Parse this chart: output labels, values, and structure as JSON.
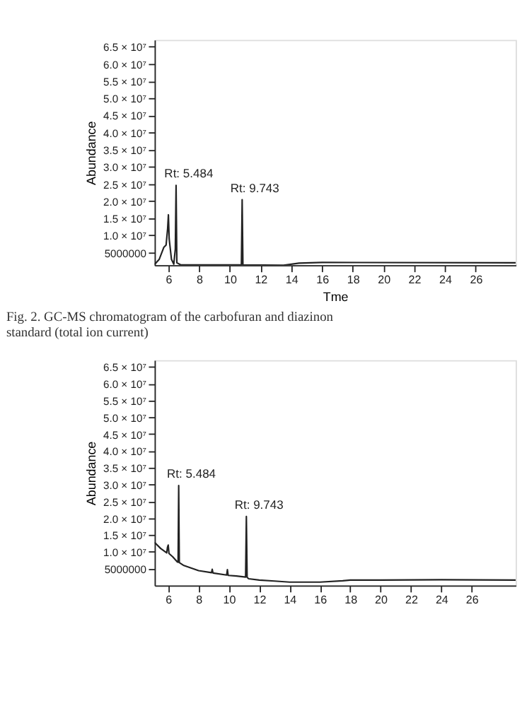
{
  "chart_data": [
    {
      "type": "line",
      "ylabel": "Abundance",
      "xlabel": "Tme",
      "series": [
        {
          "color": "#222222",
          "x": [
            5.1,
            5.4,
            5.7,
            5.85,
            5.95,
            6.0,
            6.05,
            6.2,
            6.35,
            6.45,
            6.5,
            6.55,
            6.8,
            10.75,
            10.8,
            10.85,
            13.5,
            14.5,
            16,
            28.6
          ],
          "values": [
            1500000,
            3000000,
            6500000,
            7200000,
            12000000,
            16000000,
            9000000,
            3000000,
            1600000,
            6000000,
            24600000,
            2000000,
            1400000,
            1400000,
            20400000,
            1400000,
            1300000,
            1900000,
            2100000,
            2000000
          ]
        }
      ],
      "xlim": [
        5.1,
        28.6
      ],
      "xticks": [
        6,
        8,
        10,
        12,
        14,
        16,
        18,
        20,
        22,
        24,
        26
      ],
      "ylim": [
        1300000,
        67000000
      ],
      "yticks": [
        5000000,
        {
          "value": 10000000,
          "label": "1.0 × 10⁷"
        },
        {
          "value": 15000000,
          "label": "1.5 × 10⁷"
        },
        {
          "value": 20000000,
          "label": "2.0 × 10⁷"
        },
        {
          "value": 25000000,
          "label": "2.5 × 10⁷"
        },
        {
          "value": 30000000,
          "label": "3.0 × 10⁷"
        },
        {
          "value": 35000000,
          "label": "3.5 × 10⁷"
        },
        {
          "value": 40000000,
          "label": "4.0 × 10⁷"
        },
        {
          "value": 45000000,
          "label": "4.5 × 10⁷"
        },
        {
          "value": 50000000,
          "label": "5.0 × 10⁷"
        },
        {
          "value": 55000000,
          "label": "5.5 × 10⁷"
        },
        {
          "value": 60000000,
          "label": "6.0 × 10⁷"
        },
        {
          "value": 65000000,
          "label": "6.5 × 10⁷"
        }
      ],
      "annotations": [
        {
          "text": "Rt: 5.484",
          "x": 6.5,
          "y": 24600000
        },
        {
          "text": "Rt: 9.743",
          "x": 10.8,
          "y": 20400000
        },
        "Fig. 2.   GC-MS chromatogram of the carbofuran and diazinon standard (total ion current)"
      ],
      "grid": false,
      "marker": "none",
      "line_style": "solid"
    },
    {
      "type": "line",
      "ylabel": "Abundance",
      "series": [
        {
          "color": "#222222",
          "x": [
            5.1,
            5.5,
            5.9,
            5.95,
            6.0,
            6.05,
            6.3,
            6.6,
            6.65,
            6.69,
            6.73,
            7.0,
            8.0,
            8.85,
            8.9,
            8.95,
            9.85,
            9.9,
            9.95,
            10.5,
            11.1,
            11.15,
            11.2,
            11.25,
            11.3,
            12.0,
            13.0,
            14.0,
            16.0,
            17.5,
            18.0,
            20.0,
            24.0,
            28.9
          ],
          "values": [
            12800000,
            11000000,
            9700000,
            11300000,
            12000000,
            9500000,
            8500000,
            7000000,
            6900000,
            29700000,
            6800000,
            6000000,
            4400000,
            3800000,
            4800000,
            3700000,
            3100000,
            4700000,
            3000000,
            2800000,
            2500000,
            20500000,
            2400000,
            2200000,
            2000000,
            1600000,
            1300000,
            1000000,
            1000000,
            1400000,
            1600000,
            1600000,
            1700000,
            1600000
          ]
        }
      ],
      "xlim": [
        5.1,
        28.9
      ],
      "xticks": [
        6,
        8,
        10,
        12,
        14,
        16,
        18,
        20,
        22,
        24,
        26
      ],
      "ylim": [
        0,
        67000000
      ],
      "yticks": [
        5000000,
        {
          "value": 10000000,
          "label": "1.0 × 10⁷"
        },
        {
          "value": 15000000,
          "label": "1.5 × 10⁷"
        },
        {
          "value": 20000000,
          "label": "2.0 × 10⁷"
        },
        {
          "value": 25000000,
          "label": "2.5 × 10⁷"
        },
        {
          "value": 30000000,
          "label": "3.0 × 10⁷"
        },
        {
          "value": 35000000,
          "label": "3.5 × 10⁷"
        },
        {
          "value": 40000000,
          "label": "4.0 × 10⁷"
        },
        {
          "value": 45000000,
          "label": "4.5 × 10⁷"
        },
        {
          "value": 50000000,
          "label": "5.0 × 10⁷"
        },
        {
          "value": 55000000,
          "label": "5.5 × 10⁷"
        },
        {
          "value": 60000000,
          "label": "6.0 × 10⁷"
        },
        {
          "value": 65000000,
          "label": "6.5 × 10⁷"
        }
      ],
      "annotations": [
        {
          "text": "Rt: 5.484",
          "x": 6.69,
          "y": 29700000
        },
        {
          "text": "Rt: 9.743",
          "x": 11.15,
          "y": 20500000
        }
      ],
      "grid": false,
      "marker": "none",
      "line_style": "solid"
    }
  ]
}
